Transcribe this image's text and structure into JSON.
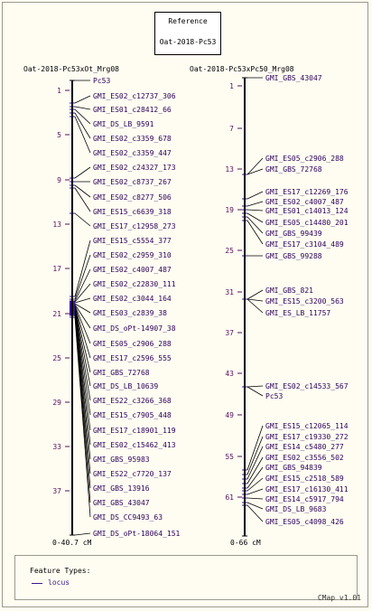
{
  "reference": {
    "title": "Reference",
    "map": "Oat-2018-Pc53"
  },
  "maps": [
    {
      "name": "Oat-2018-Pc53xOt_Mrg08",
      "range_label": "0-40.7 cM",
      "ticks": [
        "1",
        "5",
        "9",
        "13",
        "17",
        "21",
        "25",
        "29",
        "33",
        "37"
      ],
      "labels": [
        "Pc53",
        "GMI_ES02_c12737_306",
        "GMI_ES01_c28412_66",
        "GMI_DS_LB_9591",
        "GMI_ES02_c3359_678",
        "GMI_ES02_c3359_447",
        "GMI_ES02_c24327_173",
        "GMI_ES02_c8737_267",
        "GMI_ES02_c8277_506",
        "GMI_ES15_c6639_318",
        "GMI_ES17_c12958_273",
        "GMI_ES15_c5554_377",
        "GMI_ES02_c2959_310",
        "GMI_ES02_c4007_487",
        "GMI_ES02_c22830_111",
        "GMI_ES02_c3044_164",
        "GMI_ES03_c2839_38",
        "GMI_DS_oPt-14907_38",
        "GMI_ES05_c2906_288",
        "GMI_ES17_c2596_555",
        "GMI_GBS_72768",
        "GMI_DS_LB_10639",
        "GMI_ES22_c3266_368",
        "GMI_ES15_c7905_448",
        "GMI_ES17_c18901_119",
        "GMI_ES02_c15462_413",
        "GMI_GBS_95983",
        "GMI_ES22_c7720_137",
        "GMI_GBS_13916",
        "GMI_GBS_43047",
        "GMI_DS_CC9493_63",
        "GMI_DS_oPt-18064_151"
      ]
    },
    {
      "name": "Oat-2018-Pc53xPc50_Mrg08",
      "range_label": "0-66 cM",
      "ticks": [
        "1",
        "7",
        "13",
        "19",
        "25",
        "31",
        "37",
        "43",
        "49",
        "55",
        "61"
      ],
      "labels": [
        "GMI_GBS_43047",
        "GMI_ES05_c2906_288",
        "GMI_GBS_72768",
        "GMI_ES17_c12269_176",
        "GMI_ES02_c4007_487",
        "GMI_ES01_c14013_124",
        "GMI_ES05_c14480_201",
        "GMI_GBS_99439",
        "GMI_ES17_c3104_489",
        "GMI_GBS_99288",
        "GMI_GBS_821",
        "GMI_ES15_c3200_563",
        "GMI_ES_LB_11757",
        "GMI_ES02_c14533_567",
        "Pc53",
        "GMI_ES15_c12065_114",
        "GMI_ES17_c19330_272",
        "GMI_ES14_c5480_277",
        "GMI_ES02_c3556_502",
        "GMI_GBS_94839",
        "GMI_ES15_c2518_589",
        "GMI_ES17_c16130_411",
        "GMI_ES14_c5917_794",
        "GMI_DS_LB_9683",
        "GMI_ES05_c4098_426"
      ]
    }
  ],
  "legend": {
    "title": "Feature Types:",
    "item": "locus"
  },
  "version": "CMap v1.01",
  "colors": {
    "feature": "#3a1a8a",
    "tick": "#5a0f5a",
    "axis": "#000000"
  }
}
